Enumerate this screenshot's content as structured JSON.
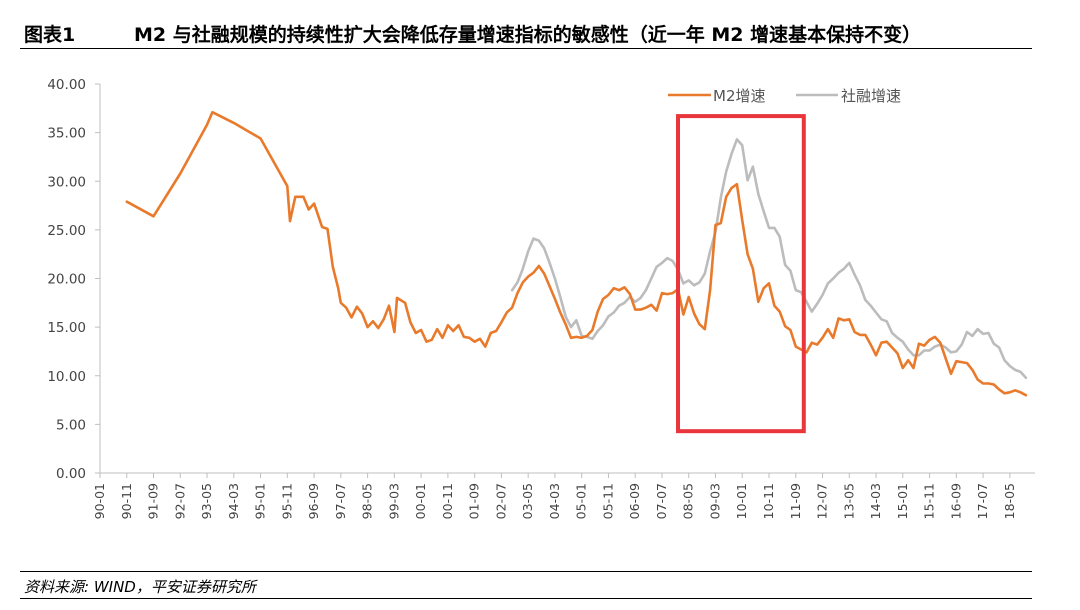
{
  "header": {
    "figure_no": "图表1",
    "title": "M2 与社融规模的持续性扩大会降低存量增速指标的敏感性（近一年 M2 增速基本保持不变）"
  },
  "footer": {
    "source": "资料来源: WIND，平安证券研究所"
  },
  "colors": {
    "m2": "#e97a2b",
    "tsf": "#bcbcbc",
    "highlight": "#e8363c",
    "axis": "#bfbfbf"
  },
  "chart_data": {
    "type": "line",
    "title": "",
    "xlabel": "",
    "ylabel": "",
    "ylim": [
      0,
      40
    ],
    "yticks": [
      "0.00",
      "5.00",
      "10.00",
      "15.00",
      "20.00",
      "25.00",
      "30.00",
      "35.00",
      "40.00"
    ],
    "xticks": [
      "90-01",
      "90-11",
      "91-09",
      "92-07",
      "93-05",
      "94-03",
      "95-01",
      "95-11",
      "96-09",
      "97-07",
      "98-05",
      "99-03",
      "00-01",
      "00-11",
      "01-09",
      "02-07",
      "03-05",
      "04-03",
      "05-01",
      "05-11",
      "06-09",
      "07-07",
      "08-05",
      "09-03",
      "10-01",
      "10-11",
      "11-09",
      "12-07",
      "13-05",
      "14-03",
      "15-01",
      "15-11",
      "16-09",
      "17-07",
      "18-05"
    ],
    "grid": false,
    "legend_position": "top-right",
    "annotation": {
      "type": "box",
      "x_from": "2008-01",
      "x_to": "2011-12",
      "y_from": 4.3,
      "y_to": 36.7
    },
    "series": [
      {
        "name": "M2增速",
        "points": [
          [
            "1990-11",
            27.9
          ],
          [
            "1991-09",
            26.4
          ],
          [
            "1992-07",
            30.8
          ],
          [
            "1993-05",
            35.8
          ],
          [
            "1993-07",
            37.1
          ],
          [
            "1994-03",
            36.0
          ],
          [
            "1995-01",
            34.4
          ],
          [
            "1995-11",
            29.5
          ],
          [
            "1995-12",
            25.9
          ],
          [
            "1996-02",
            28.4
          ],
          [
            "1996-05",
            28.4
          ],
          [
            "1996-07",
            27.1
          ],
          [
            "1996-09",
            27.7
          ],
          [
            "1996-12",
            25.3
          ],
          [
            "1997-02",
            25.1
          ],
          [
            "1997-04",
            21.2
          ],
          [
            "1997-06",
            19.0
          ],
          [
            "1997-07",
            17.5
          ],
          [
            "1997-09",
            17.0
          ],
          [
            "1997-11",
            16.0
          ],
          [
            "1998-01",
            17.1
          ],
          [
            "1998-03",
            16.4
          ],
          [
            "1998-05",
            15.0
          ],
          [
            "1998-07",
            15.6
          ],
          [
            "1998-09",
            14.9
          ],
          [
            "1998-11",
            15.8
          ],
          [
            "1999-01",
            17.2
          ],
          [
            "1999-03",
            14.5
          ],
          [
            "1999-04",
            18.0
          ],
          [
            "1999-07",
            17.5
          ],
          [
            "1999-09",
            15.5
          ],
          [
            "1999-11",
            14.4
          ],
          [
            "2000-01",
            14.7
          ],
          [
            "2000-03",
            13.5
          ],
          [
            "2000-05",
            13.7
          ],
          [
            "2000-07",
            14.8
          ],
          [
            "2000-09",
            13.9
          ],
          [
            "2000-11",
            15.2
          ],
          [
            "2001-01",
            14.6
          ],
          [
            "2001-03",
            15.2
          ],
          [
            "2001-05",
            14.0
          ],
          [
            "2001-07",
            13.9
          ],
          [
            "2001-09",
            13.5
          ],
          [
            "2001-11",
            13.8
          ],
          [
            "2002-01",
            13.0
          ],
          [
            "2002-03",
            14.4
          ],
          [
            "2002-05",
            14.6
          ],
          [
            "2002-07",
            15.5
          ],
          [
            "2002-09",
            16.5
          ],
          [
            "2002-11",
            17.0
          ],
          [
            "2003-01",
            18.5
          ],
          [
            "2003-03",
            19.6
          ],
          [
            "2003-05",
            20.2
          ],
          [
            "2003-07",
            20.6
          ],
          [
            "2003-09",
            21.3
          ],
          [
            "2003-11",
            20.5
          ],
          [
            "2004-01",
            19.2
          ],
          [
            "2004-03",
            17.9
          ],
          [
            "2004-05",
            16.5
          ],
          [
            "2004-07",
            15.3
          ],
          [
            "2004-09",
            13.9
          ],
          [
            "2004-11",
            14.0
          ],
          [
            "2005-01",
            13.9
          ],
          [
            "2005-03",
            14.1
          ],
          [
            "2005-05",
            14.7
          ],
          [
            "2005-07",
            16.6
          ],
          [
            "2005-09",
            17.9
          ],
          [
            "2005-11",
            18.3
          ],
          [
            "2006-01",
            19.0
          ],
          [
            "2006-03",
            18.8
          ],
          [
            "2006-05",
            19.1
          ],
          [
            "2006-07",
            18.4
          ],
          [
            "2006-09",
            16.8
          ],
          [
            "2006-11",
            16.8
          ],
          [
            "2007-01",
            17.0
          ],
          [
            "2007-03",
            17.3
          ],
          [
            "2007-05",
            16.7
          ],
          [
            "2007-07",
            18.5
          ],
          [
            "2007-09",
            18.4
          ],
          [
            "2007-11",
            18.5
          ],
          [
            "2008-01",
            18.9
          ],
          [
            "2008-03",
            16.3
          ],
          [
            "2008-05",
            18.1
          ],
          [
            "2008-07",
            16.4
          ],
          [
            "2008-09",
            15.3
          ],
          [
            "2008-11",
            14.8
          ],
          [
            "2009-01",
            18.8
          ],
          [
            "2009-03",
            25.5
          ],
          [
            "2009-05",
            25.7
          ],
          [
            "2009-07",
            28.4
          ],
          [
            "2009-09",
            29.3
          ],
          [
            "2009-11",
            29.7
          ],
          [
            "2010-01",
            26.0
          ],
          [
            "2010-03",
            22.5
          ],
          [
            "2010-05",
            21.0
          ],
          [
            "2010-07",
            17.6
          ],
          [
            "2010-09",
            19.0
          ],
          [
            "2010-11",
            19.5
          ],
          [
            "2011-01",
            17.2
          ],
          [
            "2011-03",
            16.6
          ],
          [
            "2011-05",
            15.1
          ],
          [
            "2011-07",
            14.7
          ],
          [
            "2011-09",
            13.0
          ],
          [
            "2011-11",
            12.7
          ],
          [
            "2012-01",
            12.4
          ],
          [
            "2012-03",
            13.4
          ],
          [
            "2012-05",
            13.2
          ],
          [
            "2012-07",
            13.9
          ],
          [
            "2012-09",
            14.8
          ],
          [
            "2012-11",
            13.9
          ],
          [
            "2013-01",
            15.9
          ],
          [
            "2013-03",
            15.7
          ],
          [
            "2013-05",
            15.8
          ],
          [
            "2013-07",
            14.5
          ],
          [
            "2013-09",
            14.2
          ],
          [
            "2013-11",
            14.2
          ],
          [
            "2014-01",
            13.2
          ],
          [
            "2014-03",
            12.1
          ],
          [
            "2014-05",
            13.4
          ],
          [
            "2014-07",
            13.5
          ],
          [
            "2014-09",
            12.9
          ],
          [
            "2014-11",
            12.3
          ],
          [
            "2015-01",
            10.8
          ],
          [
            "2015-03",
            11.6
          ],
          [
            "2015-05",
            10.8
          ],
          [
            "2015-07",
            13.3
          ],
          [
            "2015-09",
            13.1
          ],
          [
            "2015-11",
            13.7
          ],
          [
            "2016-01",
            14.0
          ],
          [
            "2016-03",
            13.4
          ],
          [
            "2016-05",
            11.8
          ],
          [
            "2016-07",
            10.2
          ],
          [
            "2016-09",
            11.5
          ],
          [
            "2016-11",
            11.4
          ],
          [
            "2017-01",
            11.3
          ],
          [
            "2017-03",
            10.6
          ],
          [
            "2017-05",
            9.6
          ],
          [
            "2017-07",
            9.2
          ],
          [
            "2017-09",
            9.2
          ],
          [
            "2017-11",
            9.1
          ],
          [
            "2018-01",
            8.6
          ],
          [
            "2018-03",
            8.2
          ],
          [
            "2018-05",
            8.3
          ],
          [
            "2018-07",
            8.5
          ],
          [
            "2018-09",
            8.3
          ],
          [
            "2018-11",
            8.0
          ]
        ]
      },
      {
        "name": "社融增速",
        "points": [
          [
            "2002-11",
            18.8
          ],
          [
            "2003-01",
            19.6
          ],
          [
            "2003-03",
            21.0
          ],
          [
            "2003-05",
            22.8
          ],
          [
            "2003-07",
            24.1
          ],
          [
            "2003-09",
            23.9
          ],
          [
            "2003-11",
            23.1
          ],
          [
            "2004-01",
            21.6
          ],
          [
            "2004-03",
            20.0
          ],
          [
            "2004-05",
            18.1
          ],
          [
            "2004-07",
            16.1
          ],
          [
            "2004-09",
            15.0
          ],
          [
            "2004-11",
            15.7
          ],
          [
            "2005-01",
            14.1
          ],
          [
            "2005-03",
            14.0
          ],
          [
            "2005-05",
            13.8
          ],
          [
            "2005-07",
            14.6
          ],
          [
            "2005-09",
            15.2
          ],
          [
            "2005-11",
            16.1
          ],
          [
            "2006-01",
            16.5
          ],
          [
            "2006-03",
            17.2
          ],
          [
            "2006-05",
            17.5
          ],
          [
            "2006-07",
            18.1
          ],
          [
            "2006-09",
            17.6
          ],
          [
            "2006-11",
            18.0
          ],
          [
            "2007-01",
            18.8
          ],
          [
            "2007-03",
            20.0
          ],
          [
            "2007-05",
            21.2
          ],
          [
            "2007-07",
            21.6
          ],
          [
            "2007-09",
            22.1
          ],
          [
            "2007-11",
            21.8
          ],
          [
            "2008-01",
            20.9
          ],
          [
            "2008-03",
            19.5
          ],
          [
            "2008-05",
            19.8
          ],
          [
            "2008-07",
            19.3
          ],
          [
            "2008-09",
            19.6
          ],
          [
            "2008-11",
            20.5
          ],
          [
            "2009-01",
            22.8
          ],
          [
            "2009-03",
            24.8
          ],
          [
            "2009-05",
            28.3
          ],
          [
            "2009-07",
            31.0
          ],
          [
            "2009-09",
            32.8
          ],
          [
            "2009-11",
            34.3
          ],
          [
            "2010-01",
            33.7
          ],
          [
            "2010-03",
            30.1
          ],
          [
            "2010-05",
            31.5
          ],
          [
            "2010-07",
            28.7
          ],
          [
            "2010-09",
            26.9
          ],
          [
            "2010-11",
            25.2
          ],
          [
            "2011-01",
            25.2
          ],
          [
            "2011-03",
            24.3
          ],
          [
            "2011-05",
            21.4
          ],
          [
            "2011-07",
            20.8
          ],
          [
            "2011-09",
            18.8
          ],
          [
            "2011-11",
            18.6
          ],
          [
            "2012-01",
            17.6
          ],
          [
            "2012-03",
            16.6
          ],
          [
            "2012-05",
            17.4
          ],
          [
            "2012-07",
            18.3
          ],
          [
            "2012-09",
            19.5
          ],
          [
            "2012-11",
            20.0
          ],
          [
            "2013-01",
            20.6
          ],
          [
            "2013-03",
            21.0
          ],
          [
            "2013-05",
            21.6
          ],
          [
            "2013-07",
            20.4
          ],
          [
            "2013-09",
            19.3
          ],
          [
            "2013-11",
            17.8
          ],
          [
            "2014-01",
            17.2
          ],
          [
            "2014-03",
            16.5
          ],
          [
            "2014-05",
            15.8
          ],
          [
            "2014-07",
            15.6
          ],
          [
            "2014-09",
            14.4
          ],
          [
            "2014-11",
            13.9
          ],
          [
            "2015-01",
            13.5
          ],
          [
            "2015-03",
            12.7
          ],
          [
            "2015-05",
            12.1
          ],
          [
            "2015-07",
            12.1
          ],
          [
            "2015-09",
            12.6
          ],
          [
            "2015-11",
            12.6
          ],
          [
            "2016-01",
            13.0
          ],
          [
            "2016-03",
            13.2
          ],
          [
            "2016-05",
            12.9
          ],
          [
            "2016-07",
            12.4
          ],
          [
            "2016-09",
            12.5
          ],
          [
            "2016-11",
            13.2
          ],
          [
            "2017-01",
            14.5
          ],
          [
            "2017-03",
            14.1
          ],
          [
            "2017-05",
            14.8
          ],
          [
            "2017-07",
            14.3
          ],
          [
            "2017-09",
            14.4
          ],
          [
            "2017-11",
            13.3
          ],
          [
            "2018-01",
            12.9
          ],
          [
            "2018-03",
            11.6
          ],
          [
            "2018-05",
            11.0
          ],
          [
            "2018-07",
            10.6
          ],
          [
            "2018-09",
            10.4
          ],
          [
            "2018-11",
            9.8
          ]
        ]
      }
    ]
  }
}
